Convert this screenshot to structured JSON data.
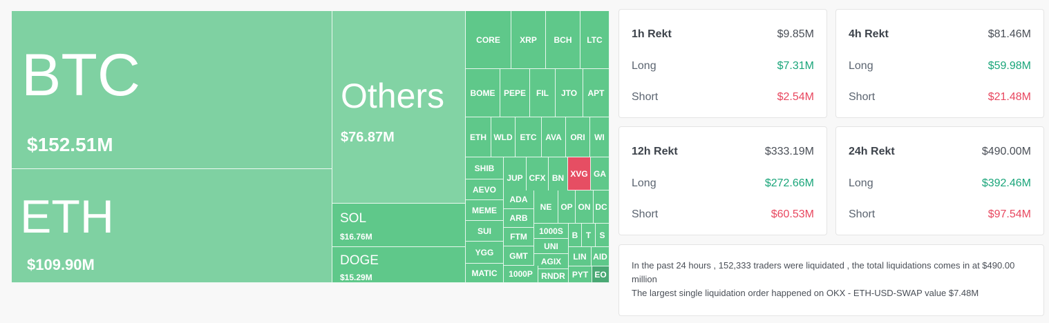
{
  "treemap": {
    "big_tiles": [
      {
        "name": "tile-btc",
        "symbol": "BTC",
        "value": "$152.51M"
      },
      {
        "name": "tile-eth",
        "symbol": "ETH",
        "value": "$109.90M"
      },
      {
        "name": "tile-others",
        "symbol": "Others",
        "value": "$76.87M"
      },
      {
        "name": "tile-sol",
        "symbol": "SOL",
        "value": "$16.76M"
      },
      {
        "name": "tile-doge",
        "symbol": "DOGE",
        "value": "$15.29M"
      }
    ],
    "small_tiles": [
      "CORE",
      "XRP",
      "BCH",
      "LTC",
      "BOME",
      "PEPE",
      "FIL",
      "JTO",
      "APT",
      "ETH",
      "WLD",
      "ETC",
      "AVA",
      "ORI",
      "WI",
      "SHIB",
      "JUP",
      "CFX",
      "BN",
      "XVG",
      "GA",
      "AEVO",
      "ADA",
      "NE",
      "OP",
      "ON",
      "DC",
      "MEME",
      "ARB",
      "1000S",
      "B",
      "T",
      "S",
      "SUI",
      "FTM",
      "UNI",
      "YGG",
      "GMT",
      "AGIX",
      "LIN",
      "AID",
      "MATIC",
      "1000P",
      "RNDR",
      "PYT",
      "EO"
    ],
    "colors": {
      "base": "#7fd1a2",
      "medium": "#5fc88a",
      "light": "#82d3a4",
      "red": "#e64e63",
      "dark": "#4aa874"
    }
  },
  "cards": [
    {
      "name": "card-1h",
      "title": "1h Rekt",
      "total": "$9.85M",
      "long_label": "Long",
      "long": "$7.31M",
      "short_label": "Short",
      "short": "$2.54M"
    },
    {
      "name": "card-4h",
      "title": "4h Rekt",
      "total": "$81.46M",
      "long_label": "Long",
      "long": "$59.98M",
      "short_label": "Short",
      "short": "$21.48M"
    },
    {
      "name": "card-12h",
      "title": "12h Rekt",
      "total": "$333.19M",
      "long_label": "Long",
      "long": "$272.66M",
      "short_label": "Short",
      "short": "$60.53M"
    },
    {
      "name": "card-24h",
      "title": "24h Rekt",
      "total": "$490.00M",
      "long_label": "Long",
      "long": "$392.46M",
      "short_label": "Short",
      "short": "$97.54M"
    }
  ],
  "summary": {
    "line1": "In the past 24 hours , 152,333 traders were liquidated , the total liquidations comes in at $490.00 million",
    "line2": "The largest single liquidation order happened on OKX - ETH-USD-SWAP value $7.48M"
  }
}
